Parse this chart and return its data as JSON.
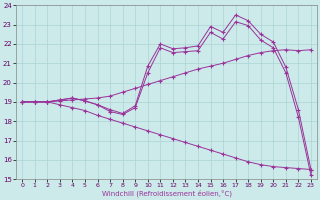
{
  "background_color": "#cceaea",
  "grid_color": "#aad4d4",
  "line_color": "#993399",
  "xlim": [
    -0.5,
    23.5
  ],
  "ylim": [
    15,
    24
  ],
  "xlabel": "Windchill (Refroidissement éolien,°C)",
  "xticks": [
    0,
    1,
    2,
    3,
    4,
    5,
    6,
    7,
    8,
    9,
    10,
    11,
    12,
    13,
    14,
    15,
    16,
    17,
    18,
    19,
    20,
    21,
    22,
    23
  ],
  "yticks": [
    15,
    16,
    17,
    18,
    19,
    20,
    21,
    22,
    23,
    24
  ],
  "lines": [
    {
      "x": [
        0,
        1,
        2,
        3,
        4,
        5,
        6,
        7,
        8,
        9,
        10,
        11,
        12,
        13,
        14,
        15,
        16,
        17,
        18,
        19,
        20,
        21,
        22,
        23
      ],
      "y": [
        19,
        19,
        19,
        19.1,
        19.2,
        19.05,
        18.85,
        18.6,
        18.4,
        18.8,
        20.85,
        22.0,
        21.75,
        21.8,
        21.9,
        22.9,
        22.6,
        23.5,
        23.2,
        22.5,
        22.1,
        20.8,
        18.6,
        15.5
      ]
    },
    {
      "x": [
        0,
        1,
        2,
        3,
        4,
        5,
        6,
        7,
        8,
        9,
        10,
        11,
        12,
        13,
        14,
        15,
        16,
        17,
        18,
        19,
        20,
        21,
        22,
        23
      ],
      "y": [
        19,
        19,
        19,
        19.1,
        19.2,
        19.05,
        18.85,
        18.5,
        18.35,
        18.7,
        20.5,
        21.8,
        21.55,
        21.6,
        21.65,
        22.6,
        22.25,
        23.15,
        22.95,
        22.2,
        21.8,
        20.5,
        18.2,
        15.2
      ]
    },
    {
      "x": [
        0,
        1,
        2,
        3,
        4,
        5,
        6,
        7,
        8,
        9,
        10,
        11,
        12,
        13,
        14,
        15,
        16,
        17,
        18,
        19,
        20,
        21,
        22,
        23
      ],
      "y": [
        19,
        19,
        19,
        19.05,
        19.1,
        19.15,
        19.2,
        19.3,
        19.5,
        19.7,
        19.9,
        20.1,
        20.3,
        20.5,
        20.7,
        20.85,
        21.0,
        21.2,
        21.4,
        21.55,
        21.65,
        21.7,
        21.65,
        21.7
      ]
    },
    {
      "x": [
        0,
        1,
        2,
        3,
        4,
        5,
        6,
        7,
        8,
        9,
        10,
        11,
        12,
        13,
        14,
        15,
        16,
        17,
        18,
        19,
        20,
        21,
        22,
        23
      ],
      "y": [
        19,
        19,
        19,
        18.85,
        18.7,
        18.55,
        18.3,
        18.1,
        17.9,
        17.7,
        17.5,
        17.3,
        17.1,
        16.9,
        16.7,
        16.5,
        16.3,
        16.1,
        15.9,
        15.75,
        15.65,
        15.6,
        15.55,
        15.5
      ]
    }
  ]
}
